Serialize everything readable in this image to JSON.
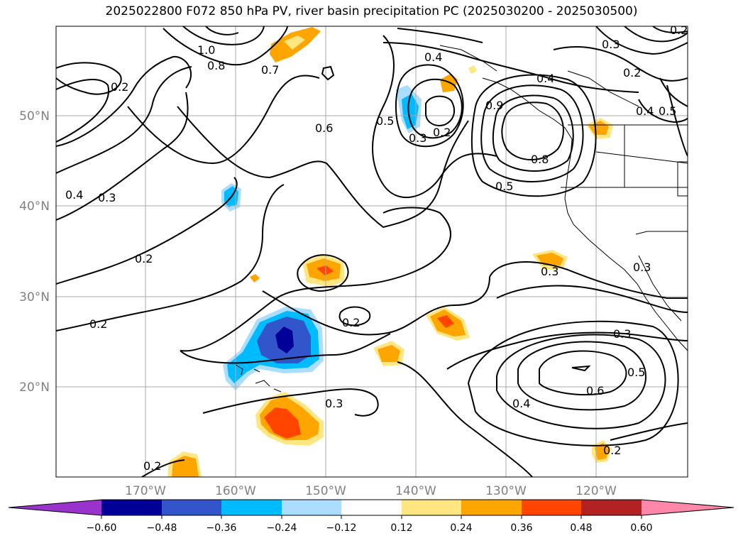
{
  "title": "2025022800 F072 850 hPa PV, river basin precipitation PC (2025030200 - 2025030500)",
  "lat_ticks": [
    "50°N",
    "40°N",
    "30°N",
    "20°N"
  ],
  "lon_ticks": [
    "170°W",
    "160°W",
    "150°W",
    "140°W",
    "130°W",
    "120°W"
  ],
  "contour_labels": [
    "1.0",
    "0.8",
    "0.7",
    "0.2",
    "0.6",
    "0.5",
    "0.4",
    "0.3",
    "0.2",
    "0.9",
    "0.4",
    "0.8",
    "0.5",
    "0.3",
    "0.2",
    "0.4",
    "0.5",
    "0.3",
    "0.2",
    "0.4",
    "0.3",
    "0.2",
    "0.2",
    "0.3",
    "0.3",
    "0.4",
    "0.6",
    "0.5",
    "0.2",
    "0.3",
    "0.2",
    "0.2"
  ],
  "colorbar": {
    "tick_labels": [
      "−0.60",
      "−0.48",
      "−0.36",
      "−0.24",
      "−0.12",
      "0.12",
      "0.24",
      "0.36",
      "0.48",
      "0.60"
    ],
    "colors": [
      "#9933cc",
      "#000099",
      "#3355cc",
      "#00bbff",
      "#aaddff",
      "#ffffff",
      "#ffe680",
      "#ffa500",
      "#ff4500",
      "#b22222",
      "#ff88aa"
    ]
  },
  "colors": {
    "contour": "#000000",
    "grid": "#aaaaaa",
    "tick_text": "#808080"
  }
}
